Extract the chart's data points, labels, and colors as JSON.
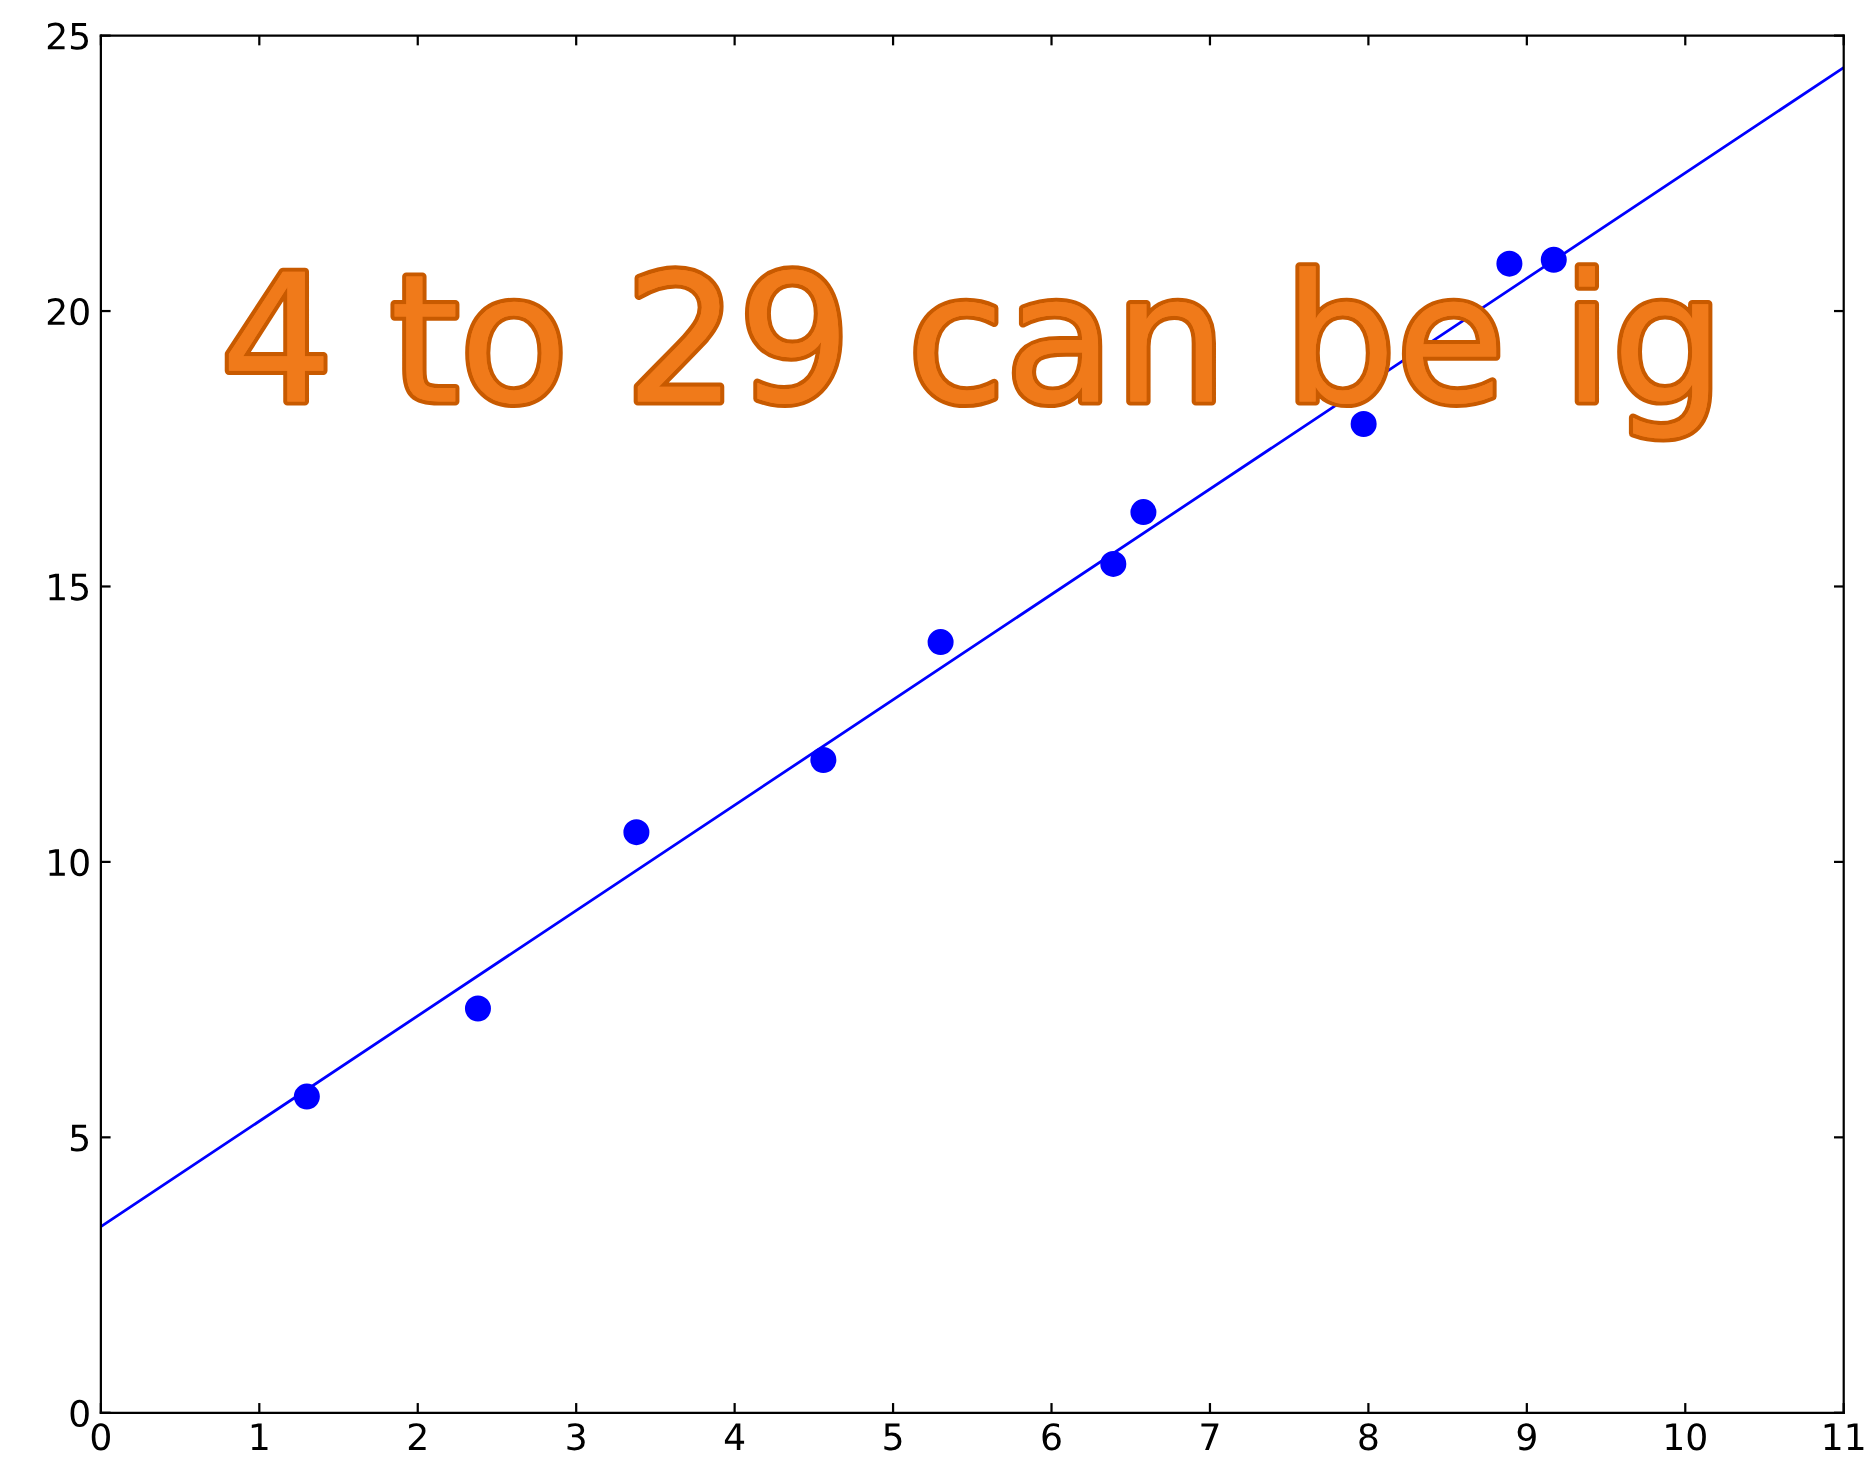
{
  "chart_data": {
    "type": "scatter",
    "xlim": [
      0,
      11
    ],
    "xticks": [
      0,
      1,
      2,
      3,
      4,
      5,
      6,
      7,
      8,
      9,
      10,
      11
    ],
    "ylim": [
      0,
      25
    ],
    "yticks": [
      0,
      5,
      10,
      15,
      20,
      25
    ],
    "series": [
      {
        "color": "#0000ff",
        "marker": "circle",
        "x": [
          1.3,
          2.38,
          3.38,
          4.56,
          5.3,
          6.39,
          6.58,
          7.97,
          8.89,
          9.17
        ],
        "values": [
          5.74,
          7.34,
          10.54,
          11.85,
          13.99,
          15.41,
          16.35,
          17.95,
          20.86,
          20.93
        ]
      },
      {
        "type": "line",
        "color": "#0000ff",
        "marker": "none",
        "line_style": "solid",
        "x": [
          0,
          11
        ],
        "values": [
          3.38,
          24.42
        ]
      }
    ],
    "annotations": [
      "4 to 29 can be ig"
    ]
  }
}
